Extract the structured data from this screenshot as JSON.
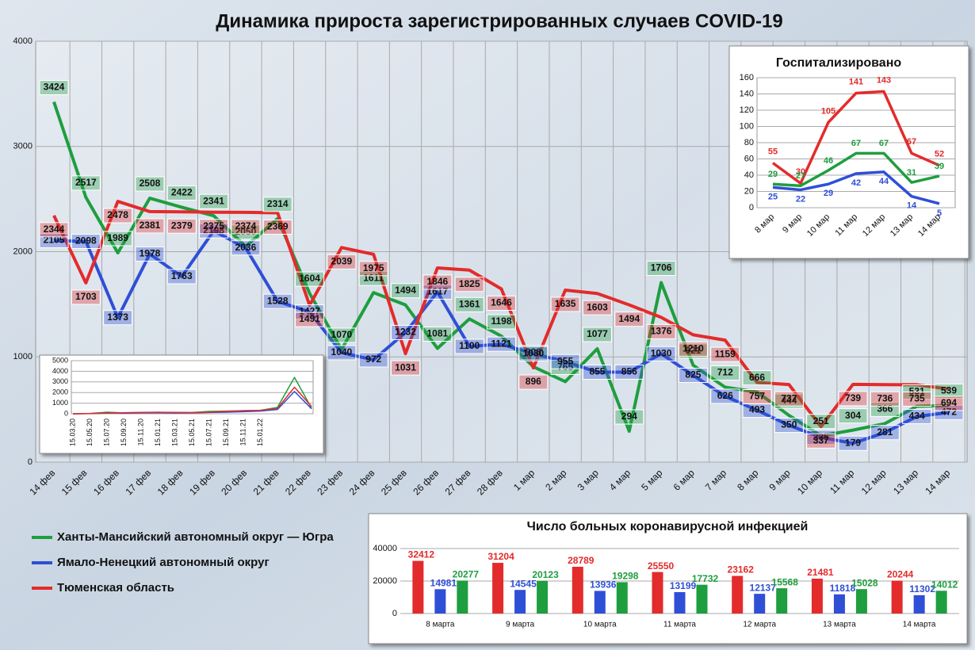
{
  "chart_data": [
    {
      "type": "line",
      "title": "Динамика прироста зарегистрированных случаев COVID-19",
      "categories": [
        "14 фев",
        "15 фев",
        "16 фев",
        "17 фев",
        "18 фев",
        "19 фев",
        "20 фев",
        "21 фев",
        "22 фев",
        "23 фев",
        "24 фев",
        "25 фев",
        "26 фев",
        "27 фев",
        "28 фев",
        "1 мар",
        "2 мар",
        "3 мар",
        "4 мар",
        "5 мар",
        "6 мар",
        "7 мар",
        "8 мар",
        "9 мар",
        "10 мар",
        "11 мар",
        "12 мар",
        "13 мар",
        "14 мар"
      ],
      "series": [
        {
          "name": "Ханты-Мансийский автономный округ — Югра",
          "color": "#1e9e3e",
          "values": [
            3424,
            2517,
            1989,
            2508,
            2422,
            2341,
            2050,
            2314,
            1604,
            1070,
            1611,
            1494,
            1081,
            1361,
            1198,
            906,
            765,
            1077,
            294,
            1706,
            921,
            712,
            666,
            444,
            251,
            304,
            366,
            531,
            539
          ]
        },
        {
          "name": "Ямало-Ненецкий автономный округ",
          "color": "#2f4fd6",
          "values": [
            2105,
            2098,
            1373,
            1978,
            1763,
            2198,
            2036,
            1528,
            1427,
            1040,
            972,
            1232,
            1617,
            1100,
            1121,
            1030,
            955,
            855,
            856,
            1030,
            825,
            626,
            493,
            350,
            235,
            179,
            281,
            434,
            472
          ]
        },
        {
          "name": "Тюменская область",
          "color": "#e32b2b",
          "values": [
            2344,
            1703,
            2478,
            2381,
            2379,
            2375,
            2374,
            2369,
            1491,
            2039,
            1975,
            1031,
            1846,
            1825,
            1646,
            896,
            1635,
            1603,
            1494,
            1376,
            1210,
            1159,
            757,
            737,
            337,
            739,
            736,
            735,
            694
          ]
        }
      ],
      "ylim": [
        0,
        4000
      ],
      "yticks": [
        0,
        1000,
        2000,
        3000,
        4000
      ],
      "grid": true
    },
    {
      "type": "line",
      "title": "Госпитализировано",
      "categories": [
        "8 мар",
        "9 мар",
        "10 мар",
        "11 мар",
        "12 мар",
        "13 мар",
        "14 мар"
      ],
      "series": [
        {
          "name": "Тюменская область",
          "color": "#e32b2b",
          "values": [
            55,
            30,
            105,
            141,
            143,
            67,
            52
          ]
        },
        {
          "name": "Ханты-Мансийский автономный округ — Югра",
          "color": "#1e9e3e",
          "values": [
            29,
            27,
            46,
            67,
            67,
            31,
            39
          ]
        },
        {
          "name": "Ямало-Ненецкий автономный округ",
          "color": "#2f4fd6",
          "values": [
            25,
            22,
            29,
            42,
            44,
            14,
            5
          ]
        }
      ],
      "ylim": [
        0,
        160
      ],
      "yticks": [
        0,
        20,
        40,
        60,
        80,
        100,
        120,
        140,
        160
      ],
      "grid": true
    },
    {
      "type": "bar",
      "title": "Число больных коронавирусной инфекцией",
      "categories": [
        "8 марта",
        "9 марта",
        "10 марта",
        "11 марта",
        "12 марта",
        "13 марта",
        "14 марта"
      ],
      "series": [
        {
          "name": "Тюменская область",
          "color": "#e32b2b",
          "values": [
            32412,
            31204,
            28789,
            25550,
            23162,
            21481,
            20244
          ]
        },
        {
          "name": "Ямало-Ненецкий автономный округ",
          "color": "#2f4fd6",
          "values": [
            14981,
            14545,
            13936,
            13199,
            12137,
            11818,
            11302
          ]
        },
        {
          "name": "Ханты-Мансийский автономный округ — Югра",
          "color": "#1e9e3e",
          "values": [
            20277,
            20123,
            19298,
            17732,
            15568,
            15028,
            14012
          ]
        }
      ],
      "ylim": [
        0,
        40000
      ],
      "yticks": [
        0,
        20000,
        40000
      ],
      "grid": true
    },
    {
      "type": "line",
      "categories": [
        "15.03.20",
        "15.05.20",
        "15.07.20",
        "15.09.20",
        "15.11.20",
        "15.01.21",
        "15.03.21",
        "15.05.21",
        "15.07.21",
        "15.09.21",
        "15.11.21",
        "15.01.22",
        null,
        null,
        null
      ],
      "series": [
        {
          "name": "Ханты-Мансийский автономный округ — Югра",
          "color": "#1e9e3e",
          "values": [
            0,
            30,
            150,
            80,
            130,
            140,
            110,
            120,
            220,
            250,
            280,
            330,
            600,
            3424,
            539
          ]
        },
        {
          "name": "Ямало-Ненецкий автономный округ",
          "color": "#2f4fd6",
          "values": [
            0,
            20,
            80,
            60,
            80,
            90,
            70,
            80,
            120,
            150,
            200,
            250,
            400,
            2100,
            472
          ]
        },
        {
          "name": "Тюменская область",
          "color": "#e32b2b",
          "values": [
            0,
            20,
            60,
            100,
            120,
            140,
            130,
            110,
            150,
            220,
            300,
            320,
            500,
            2500,
            694
          ]
        }
      ],
      "ylim": [
        0,
        5000
      ],
      "yticks": [
        0,
        1000,
        2000,
        3000,
        4000,
        5000
      ],
      "grid": true
    }
  ]
}
